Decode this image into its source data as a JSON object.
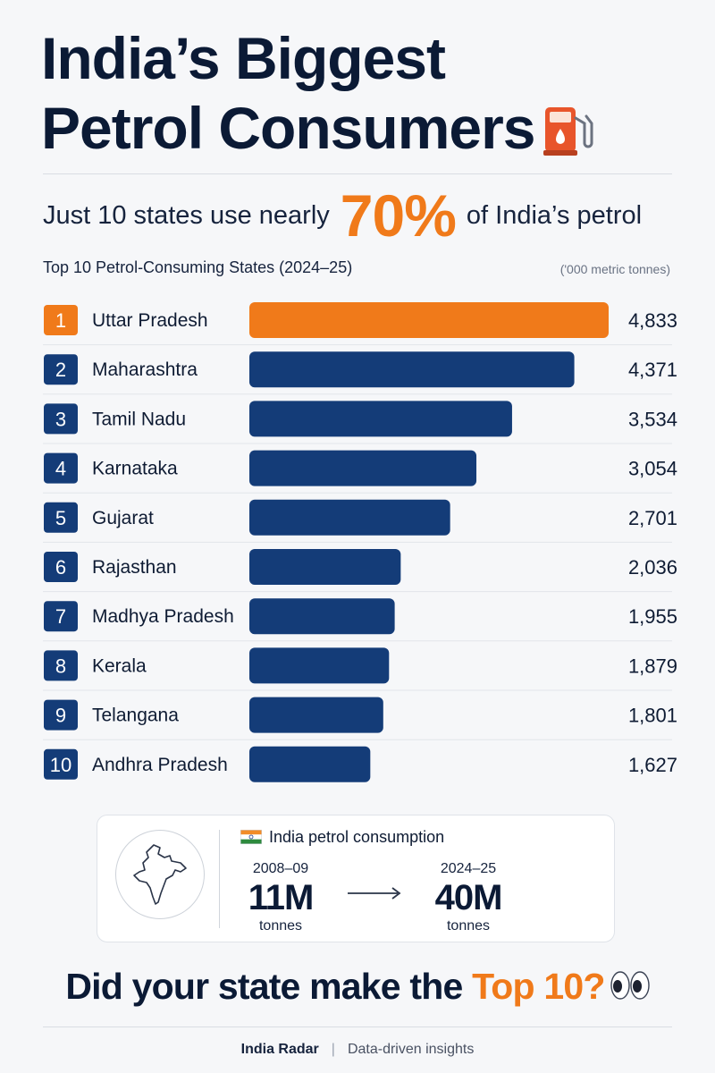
{
  "header": {
    "title_line1": "India’s Biggest",
    "title_line2": "Petrol Consumers",
    "title_icon": "fuel-pump-icon",
    "subtitle_pre": "Just 10 states use nearly",
    "subtitle_pct": "70%",
    "subtitle_post": "of India’s petrol"
  },
  "colors": {
    "accent": "#f07a1a",
    "bar": "#143c78",
    "navy_text": "#0b1a35"
  },
  "chart_data": {
    "type": "bar",
    "orientation": "horizontal",
    "title": "Top 10 Petrol-Consuming States (2024–25)",
    "unit_label": "('000 metric tonnes)",
    "ranks": [
      "1",
      "2",
      "3",
      "4",
      "5",
      "6",
      "7",
      "8",
      "9",
      "10"
    ],
    "categories": [
      "Uttar Pradesh",
      "Maharashtra",
      "Tamil Nadu",
      "Karnataka",
      "Gujarat",
      "Rajasthan",
      "Madhya Pradesh",
      "Kerala",
      "Telangana",
      "Andhra Pradesh"
    ],
    "values": [
      4833,
      4371,
      3534,
      3054,
      2701,
      2036,
      1955,
      1879,
      1801,
      1627
    ],
    "value_labels": [
      "4,833",
      "4,371",
      "3,534",
      "3,054",
      "2,701",
      "2,036",
      "1,955",
      "1,879",
      "1,801",
      "1,627"
    ],
    "highlight_index": 0,
    "xlim": [
      0,
      4833
    ],
    "grid": false
  },
  "summary": {
    "map_icon": "india-map-icon",
    "flag_icon": "india-flag-icon",
    "title": "India petrol consumption",
    "from_year": "2008–09",
    "from_value": "11M",
    "from_unit": "tonnes",
    "arrow_icon": "arrow-right-icon",
    "to_year": "2024–25",
    "to_value": "40M",
    "to_unit": "tonnes"
  },
  "cta": {
    "pre": "Did your state make the",
    "accent": "Top 10?",
    "icon": "eyes-icon"
  },
  "footer": {
    "brand": "India Radar",
    "separator": "|",
    "tagline": "Data-driven insights"
  }
}
